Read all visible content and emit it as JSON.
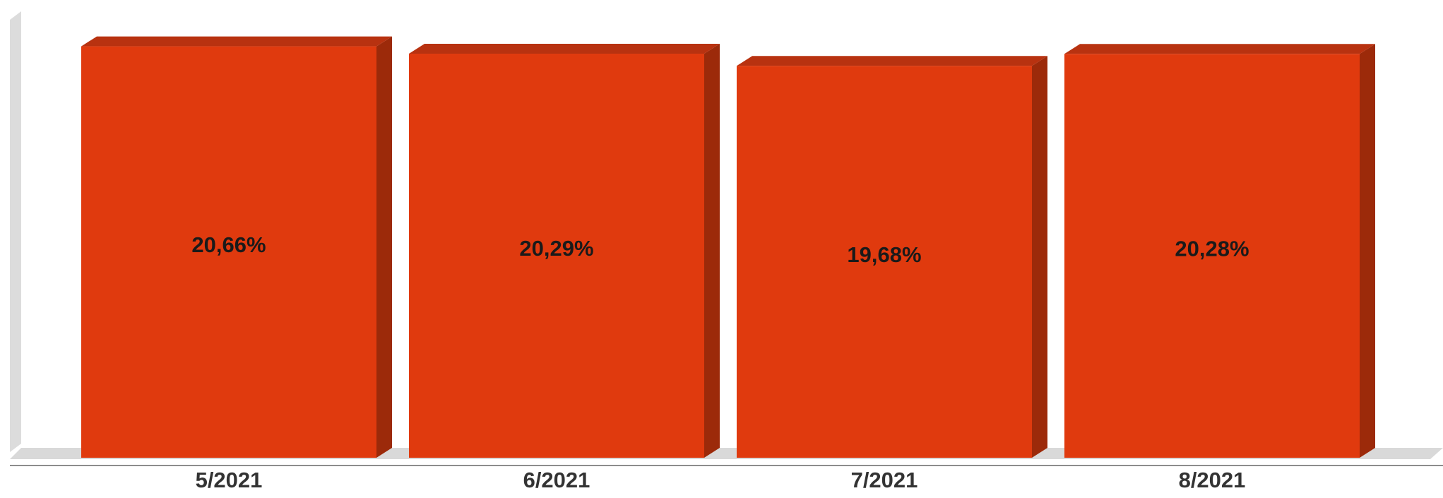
{
  "chart_data": {
    "type": "bar",
    "style": "3d",
    "categories": [
      "5/2021",
      "6/2021",
      "7/2021",
      "8/2021"
    ],
    "values": [
      20.66,
      20.29,
      19.68,
      20.28
    ],
    "value_labels": [
      "20,66%",
      "20,29%",
      "19,68%",
      "20,28%"
    ],
    "title": "",
    "xlabel": "",
    "ylabel": "",
    "ylim": [
      0,
      21
    ],
    "grid": false,
    "legend": "none"
  },
  "colors": {
    "bar_front": "#e03a0e",
    "bar_top": "#b83210",
    "bar_side": "#9c2a0a",
    "floor": "#d9d9d9",
    "back_wall": "#dcdcdc",
    "axis_line": "#8c8c8c"
  }
}
